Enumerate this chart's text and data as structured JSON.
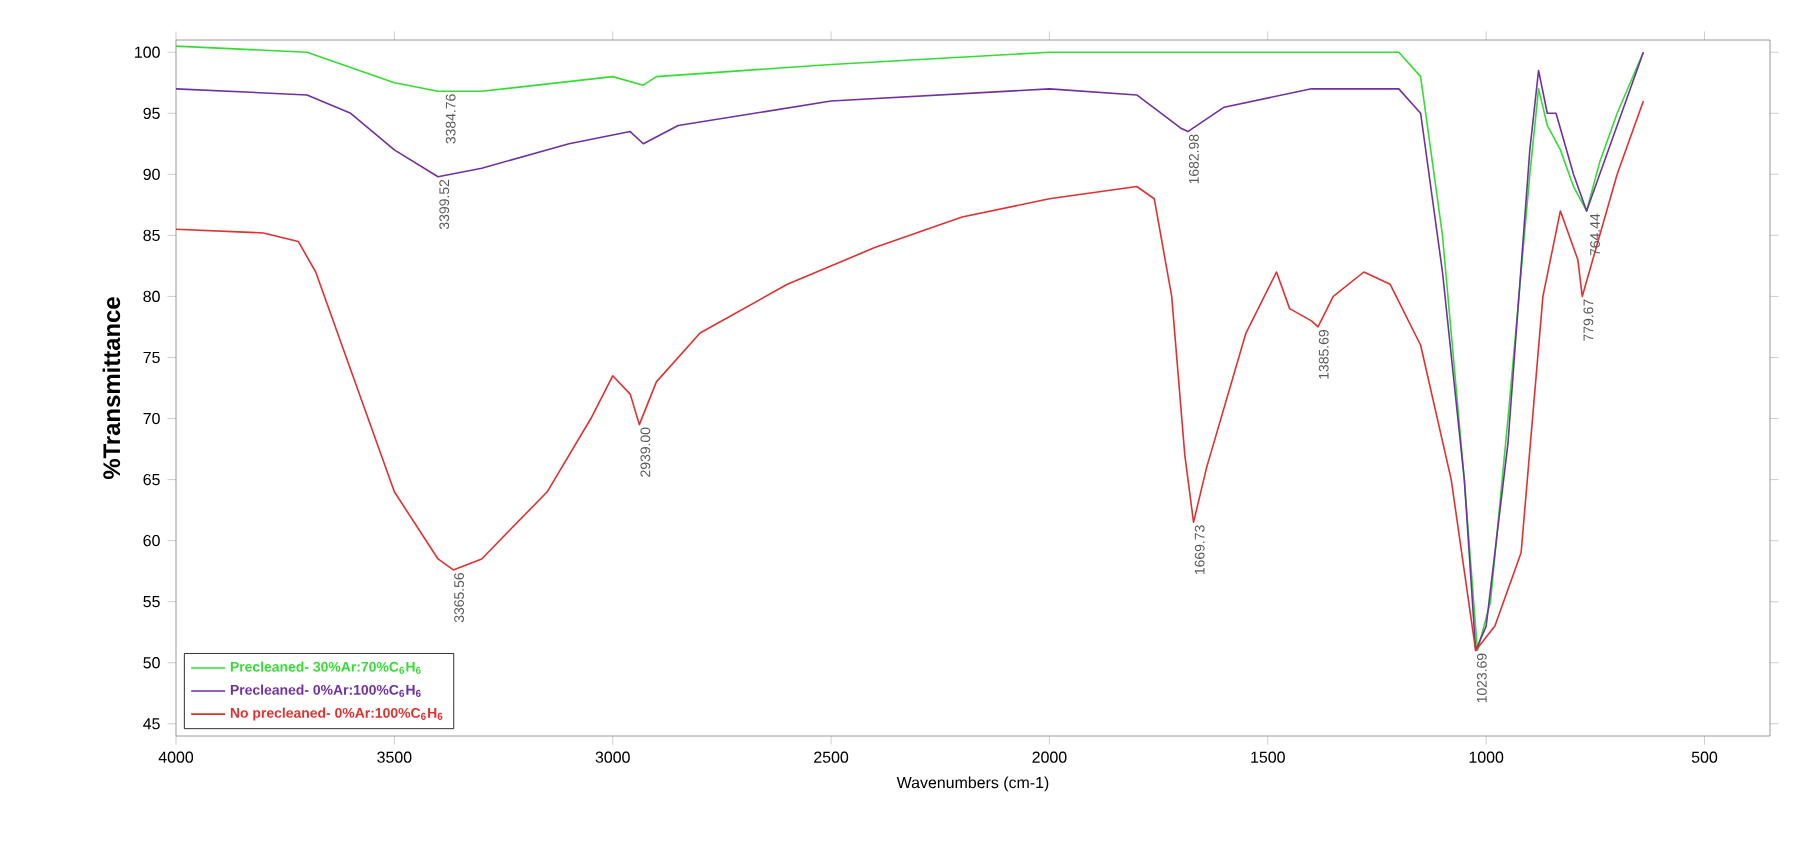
{
  "chart_data": {
    "type": "line",
    "xlabel": "Wavenumbers (cm-1)",
    "ylabel": "%Transmittance",
    "xlim": [
      4000,
      350
    ],
    "xticks": [
      4000,
      3500,
      3000,
      2500,
      2000,
      1500,
      1000,
      500
    ],
    "ylim": [
      44,
      101
    ],
    "yticks": [
      45,
      50,
      55,
      60,
      65,
      70,
      75,
      80,
      85,
      90,
      95,
      100
    ],
    "grid": false,
    "legend": "bottom left",
    "marker": "none",
    "line_style": "solid",
    "series": [
      {
        "name": "Precleaned- 30%Ar:70%C$_{6}$H$_{6}$",
        "color": "#33dd33",
        "x": [
          4000,
          3700,
          3500,
          3400,
          3300,
          3000,
          2930,
          2900,
          2500,
          2000,
          1500,
          1200,
          1150,
          1100,
          1050,
          1020,
          990,
          950,
          900,
          880,
          860,
          830,
          800,
          770,
          740,
          700,
          640
        ],
        "values": [
          100.5,
          100,
          97.5,
          96.8,
          96.8,
          98,
          97.3,
          98,
          99,
          100,
          100,
          100,
          98,
          85,
          65,
          51,
          55,
          70,
          90,
          97,
          94,
          92,
          89,
          87,
          91,
          95,
          100
        ]
      },
      {
        "name": "Precleaned- 0%Ar:100%C$_{6}$H$_{6}$",
        "color": "#7030a0",
        "x": [
          4000,
          3700,
          3600,
          3500,
          3400,
          3300,
          3100,
          2960,
          2930,
          2850,
          2500,
          2000,
          1800,
          1700,
          1683,
          1600,
          1400,
          1200,
          1150,
          1100,
          1050,
          1024,
          1000,
          950,
          900,
          880,
          860,
          840,
          800,
          770,
          740,
          700,
          640
        ],
        "values": [
          97,
          96.5,
          95,
          92,
          89.8,
          90.5,
          92.5,
          93.5,
          92.5,
          94,
          96,
          97,
          96.5,
          93.8,
          93.5,
          95.5,
          97,
          97,
          95,
          82,
          65,
          51,
          53,
          68,
          92,
          98.5,
          95,
          95,
          90,
          87,
          90,
          94,
          100
        ]
      },
      {
        "name": "No precleaned- 0%Ar:100%C$_{6}$H$_{6}$",
        "color": "#e03030",
        "x": [
          4000,
          3800,
          3720,
          3680,
          3600,
          3500,
          3400,
          3365,
          3300,
          3150,
          3050,
          3000,
          2960,
          2939,
          2900,
          2800,
          2600,
          2400,
          2200,
          2000,
          1800,
          1760,
          1720,
          1690,
          1670,
          1640,
          1550,
          1480,
          1450,
          1400,
          1385,
          1350,
          1280,
          1220,
          1150,
          1080,
          1024,
          980,
          920,
          870,
          830,
          790,
          780,
          740,
          700,
          640
        ],
        "values": [
          85.5,
          85.2,
          84.5,
          82,
          74,
          64,
          58.5,
          57.6,
          58.5,
          64,
          70,
          73.5,
          72,
          69.5,
          73,
          77,
          81,
          84,
          86.5,
          88,
          89,
          88,
          80,
          67,
          61.5,
          66,
          77,
          82,
          79,
          78,
          77.5,
          80,
          82,
          81,
          76,
          65,
          51,
          53,
          59,
          80,
          87,
          83,
          80,
          85,
          90,
          96
        ]
      }
    ],
    "annotations": [
      {
        "text": "3399.52",
        "x": 3399.52,
        "y": 89.8
      },
      {
        "text": "3384.76",
        "x": 3384.76,
        "y": 96.8
      },
      {
        "text": "3365.56",
        "x": 3365.56,
        "y": 57.6
      },
      {
        "text": "2939.00",
        "x": 2939.0,
        "y": 69.5
      },
      {
        "text": "1682.98",
        "x": 1682.98,
        "y": 93.5
      },
      {
        "text": "1669.73",
        "x": 1669.73,
        "y": 61.5
      },
      {
        "text": "1385.69",
        "x": 1385.69,
        "y": 77.5
      },
      {
        "text": "1023.69",
        "x": 1023.69,
        "y": 51
      },
      {
        "text": "779.67",
        "x": 779.67,
        "y": 80
      },
      {
        "text": "764.44",
        "x": 764.44,
        "y": 87
      }
    ]
  }
}
